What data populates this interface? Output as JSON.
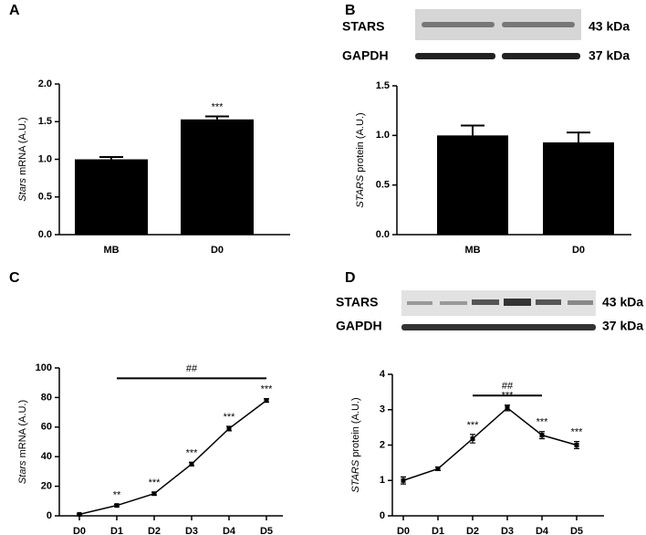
{
  "chart_data": [
    {
      "type": "bar",
      "panel": "A",
      "y_label": [
        "Stars",
        " mRNA (A.U.)"
      ],
      "categories": [
        "MB",
        "D0"
      ],
      "values": [
        1.0,
        1.53
      ],
      "errors": [
        0.03,
        0.04
      ],
      "color": "#000000",
      "significance": [
        null,
        "***"
      ],
      "ylim": [
        0,
        2
      ],
      "yticks": [
        {
          "value": 0,
          "label": "0.0"
        },
        {
          "value": 0.5,
          "label": "0.5"
        },
        {
          "value": 1,
          "label": "1.0"
        },
        {
          "value": 1.5,
          "label": "1.5"
        },
        {
          "value": 2,
          "label": "2.0"
        }
      ]
    },
    {
      "type": "bar",
      "panel": "B",
      "y_label": [
        "STARS",
        " protein (A.U.)"
      ],
      "blot": {
        "labels": [
          "STARS",
          "GAPDH"
        ],
        "sizes": [
          "43 kDa",
          "37 kDa"
        ]
      },
      "categories": [
        "MB",
        "D0"
      ],
      "values": [
        1.0,
        0.93
      ],
      "errors": [
        0.1,
        0.1
      ],
      "color": "#000000",
      "ylim": [
        0,
        1.5
      ],
      "yticks": [
        {
          "value": 0,
          "label": "0.0"
        },
        {
          "value": 0.5,
          "label": "0.5"
        },
        {
          "value": 1,
          "label": "1.0"
        },
        {
          "value": 1.5,
          "label": "1.5"
        }
      ]
    },
    {
      "type": "line",
      "panel": "C",
      "y_label": [
        "Stars",
        " mRNA (A.U.)"
      ],
      "categories": [
        "D0",
        "D1",
        "D2",
        "D3",
        "D4",
        "D5"
      ],
      "values": [
        1,
        7,
        15,
        35,
        59,
        78
      ],
      "errors": [
        0.5,
        0.8,
        1,
        1.2,
        1.5,
        1.2
      ],
      "color": "#000000",
      "significance": [
        null,
        "**",
        "***",
        "***",
        "***",
        "***"
      ],
      "bracket": {
        "from": "D1",
        "to": "D5",
        "y": 93,
        "text": "##"
      },
      "ylim": [
        0,
        100
      ],
      "yticks": [
        0,
        20,
        40,
        60,
        80,
        100
      ]
    },
    {
      "type": "line",
      "panel": "D",
      "y_label": [
        "STARS",
        " protein (A.U.)"
      ],
      "blot": {
        "labels": [
          "STARS",
          "GAPDH"
        ],
        "sizes": [
          "43 kDa",
          "37 kDa"
        ]
      },
      "categories": [
        "D0",
        "D1",
        "D2",
        "D3",
        "D4",
        "D5"
      ],
      "values": [
        1.0,
        1.33,
        2.18,
        3.05,
        2.28,
        2.0
      ],
      "errors": [
        0.1,
        0.05,
        0.12,
        0.08,
        0.1,
        0.1
      ],
      "color": "#000000",
      "significance": [
        null,
        null,
        "***",
        "***",
        "***",
        "***"
      ],
      "bracket": {
        "from": "D2",
        "to": "D4",
        "y": 3.4,
        "text": "##"
      },
      "ylim": [
        0,
        4
      ],
      "yticks": [
        0,
        1,
        2,
        3,
        4
      ]
    }
  ]
}
